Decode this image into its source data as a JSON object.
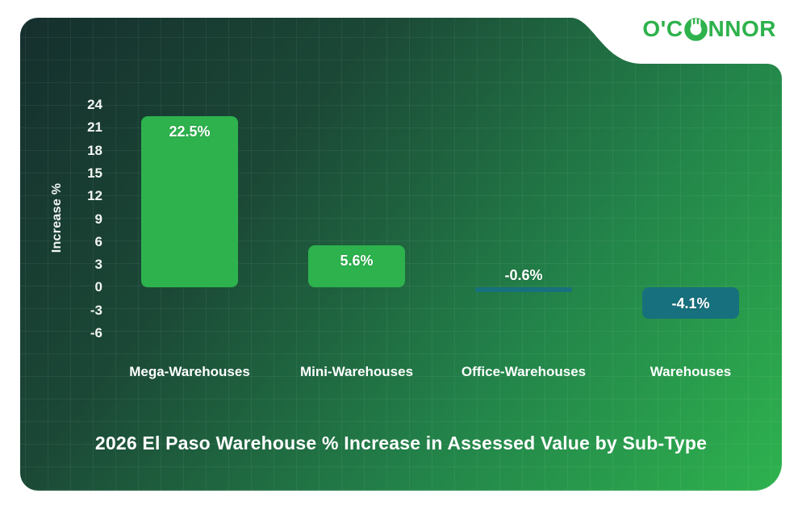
{
  "logo": {
    "name": "O'CONNOR",
    "part1": "O'C",
    "part2": "NNOR",
    "color": "#2eb24c"
  },
  "chart_data": {
    "type": "bar",
    "title": "2026 El Paso Warehouse % Increase in Assessed Value by Sub-Type",
    "ylabel": "Increase %",
    "categories": [
      "Mega-Warehouses",
      "Mini-Warehouses",
      "Office-Warehouses",
      "Warehouses"
    ],
    "values": [
      22.5,
      5.6,
      -0.6,
      -4.1
    ],
    "value_labels": [
      "22.5%",
      "5.6%",
      "-0.6%",
      "-4.1%"
    ],
    "yticks": [
      24,
      21,
      18,
      15,
      12,
      9,
      6,
      3,
      0,
      -3,
      -6
    ],
    "ylim": [
      -6,
      24
    ],
    "grid": true,
    "legend": "none",
    "colors": {
      "positive_bar": "#2db24d",
      "negative_bar": "#17707d",
      "text": "#ffffff",
      "card_dark": "#152f2d",
      "card_bright": "#2eb24e"
    }
  }
}
